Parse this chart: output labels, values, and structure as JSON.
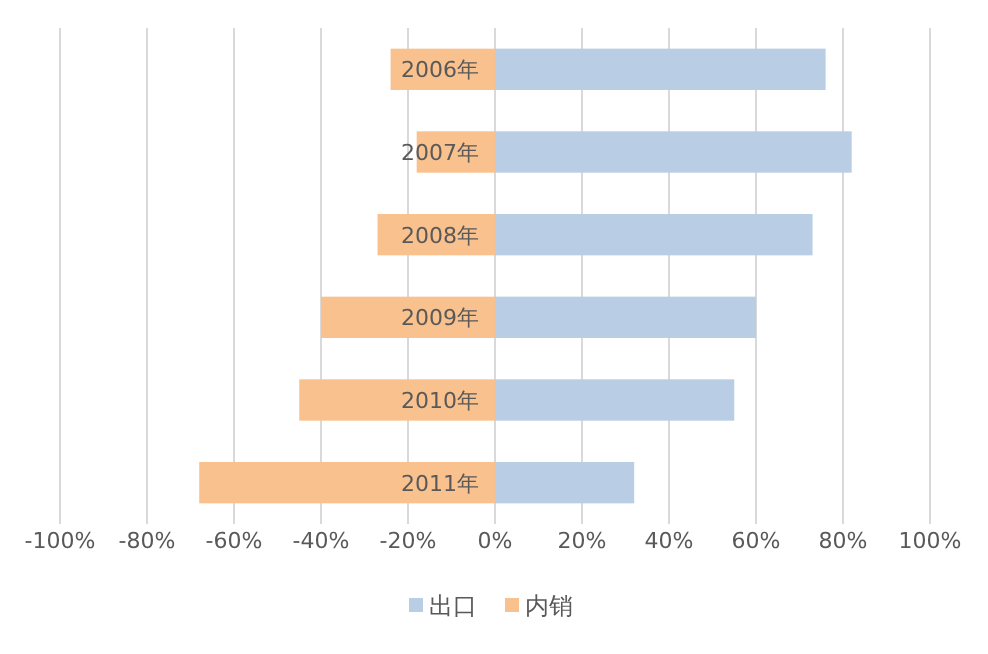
{
  "chart_data": {
    "type": "bar",
    "orientation": "horizontal",
    "stacked": true,
    "categories": [
      "2006年",
      "2007年",
      "2008年",
      "2009年",
      "2010年",
      "2011年"
    ],
    "series": [
      {
        "name": "出口",
        "color": "#b9cde5",
        "values": [
          76,
          82,
          73,
          60,
          55,
          32
        ]
      },
      {
        "name": "内销",
        "color": "#f9c18d",
        "values": [
          -24,
          -18,
          -27,
          -40,
          -45,
          -68
        ]
      }
    ],
    "xlim": [
      -100,
      100
    ],
    "xticks": [
      {
        "value": -100,
        "label": "-100%"
      },
      {
        "value": -80,
        "label": "-80%"
      },
      {
        "value": -60,
        "label": "-60%"
      },
      {
        "value": -40,
        "label": "-40%"
      },
      {
        "value": -20,
        "label": "-20%"
      },
      {
        "value": 0,
        "label": "0%"
      },
      {
        "value": 20,
        "label": "20%"
      },
      {
        "value": 40,
        "label": "40%"
      },
      {
        "value": 60,
        "label": "60%"
      },
      {
        "value": 80,
        "label": "80%"
      },
      {
        "value": 100,
        "label": "100%"
      }
    ],
    "grid": "x",
    "legend": "bottom"
  }
}
